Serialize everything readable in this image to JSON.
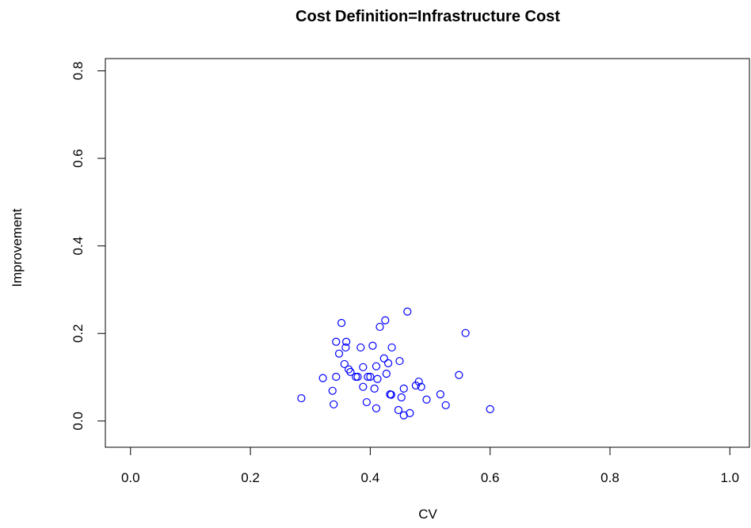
{
  "chart_data": {
    "type": "scatter",
    "title": "Cost Definition=Infrastructure Cost",
    "x_label": "CV",
    "y_label": "Improvement",
    "color": "#0000ff",
    "xlim": [
      -0.042,
      1.034
    ],
    "ylim": [
      -0.06,
      0.828
    ],
    "xticks": [
      {
        "value": 0,
        "label": "0.0"
      },
      0.2,
      0.4,
      0.6,
      0.8,
      {
        "value": 1,
        "label": "1.0"
      }
    ],
    "yticks": [
      {
        "value": 0,
        "label": "0.0"
      },
      0.2,
      0.4,
      0.6,
      0.8
    ],
    "x": [
      0.285,
      0.321,
      0.337,
      0.339,
      0.343,
      0.343,
      0.348,
      0.352,
      0.357,
      0.36,
      0.359,
      0.364,
      0.367,
      0.376,
      0.379,
      0.384,
      0.388,
      0.388,
      0.394,
      0.396,
      0.4,
      0.404,
      0.407,
      0.41,
      0.41,
      0.412,
      0.416,
      0.423,
      0.425,
      0.427,
      0.43,
      0.433,
      0.435,
      0.436,
      0.447,
      0.449,
      0.452,
      0.456,
      0.456,
      0.462,
      0.466,
      0.476,
      0.481,
      0.485,
      0.494,
      0.517,
      0.526,
      0.548,
      0.559,
      0.6
    ],
    "values": [
      0.052,
      0.098,
      0.069,
      0.038,
      0.101,
      0.181,
      0.154,
      0.224,
      0.13,
      0.181,
      0.168,
      0.118,
      0.112,
      0.101,
      0.101,
      0.168,
      0.078,
      0.123,
      0.043,
      0.101,
      0.101,
      0.172,
      0.074,
      0.125,
      0.029,
      0.096,
      0.215,
      0.143,
      0.23,
      0.108,
      0.132,
      0.061,
      0.06,
      0.168,
      0.025,
      0.137,
      0.054,
      0.074,
      0.013,
      0.25,
      0.018,
      0.081,
      0.09,
      0.078,
      0.049,
      0.061,
      0.036,
      0.105,
      0.201,
      0.027
    ]
  }
}
